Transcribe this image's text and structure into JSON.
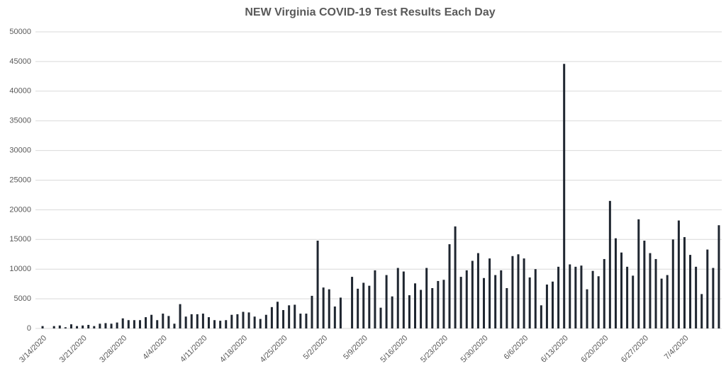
{
  "chart_data": {
    "type": "bar",
    "title": "NEW Virginia COVID-19 Test Results Each Day",
    "categories": [
      "3/14/2020",
      null,
      null,
      null,
      null,
      null,
      null,
      "3/21/2020",
      null,
      null,
      null,
      null,
      null,
      null,
      "3/28/2020",
      null,
      null,
      null,
      null,
      null,
      null,
      "4/4/2020",
      null,
      null,
      null,
      null,
      null,
      null,
      "4/11/2020",
      null,
      null,
      null,
      null,
      null,
      null,
      "4/18/2020",
      null,
      null,
      null,
      null,
      null,
      null,
      "4/25/2020",
      null,
      null,
      null,
      null,
      null,
      null,
      "5/2/2020",
      null,
      null,
      null,
      null,
      null,
      null,
      "5/9/2020",
      null,
      null,
      null,
      null,
      null,
      null,
      "5/16/2020",
      null,
      null,
      null,
      null,
      null,
      null,
      "5/23/2020",
      null,
      null,
      null,
      null,
      null,
      null,
      "5/30/2020",
      null,
      null,
      null,
      null,
      null,
      null,
      "6/6/2020",
      null,
      null,
      null,
      null,
      null,
      null,
      "6/13/2020",
      null,
      null,
      null,
      null,
      null,
      null,
      "6/20/2020",
      null,
      null,
      null,
      null,
      null,
      null,
      "6/27/2020",
      null,
      null,
      null,
      null,
      null,
      null,
      "7/4/2020",
      null,
      null,
      null,
      null,
      null,
      null
    ],
    "values": [
      400,
      0,
      400,
      500,
      200,
      700,
      400,
      500,
      600,
      400,
      800,
      900,
      800,
      1000,
      1700,
      1400,
      1400,
      1400,
      1900,
      2300,
      1400,
      2500,
      2100,
      800,
      4100,
      2000,
      2400,
      2400,
      2500,
      1900,
      1400,
      1300,
      1400,
      2300,
      2400,
      2800,
      2700,
      2000,
      1600,
      2300,
      3600,
      4500,
      3100,
      3900,
      4000,
      2500,
      2500,
      5500,
      14800,
      6900,
      6600,
      3700,
      5200,
      0,
      8700,
      6700,
      7700,
      7200,
      9800,
      3500,
      9000,
      5400,
      10200,
      9600,
      5600,
      7600,
      6500,
      10200,
      6800,
      8000,
      8200,
      14200,
      17200,
      8700,
      9800,
      11400,
      12700,
      8500,
      11800,
      9000,
      9800,
      6800,
      12200,
      12500,
      11800,
      8600,
      10000,
      3900,
      7400,
      7900,
      10400,
      44600,
      10800,
      10400,
      10600,
      6600,
      9700,
      8800,
      11700,
      21500,
      15200,
      12800,
      10400,
      8900,
      18400,
      14800,
      12700,
      11700,
      8400,
      9000,
      15000,
      18200,
      15400,
      12400,
      10400,
      5800,
      13300,
      10200,
      17400
    ],
    "color": "#1f2630",
    "ylim": [
      0,
      50000
    ],
    "yticks": [
      0,
      5000,
      10000,
      15000,
      20000,
      25000,
      30000,
      35000,
      40000,
      45000,
      50000
    ],
    "grid": true
  }
}
